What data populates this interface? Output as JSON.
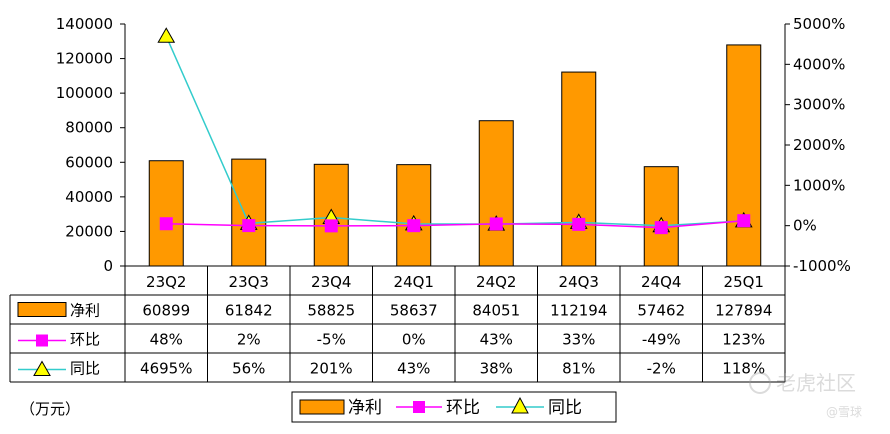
{
  "chart_data": {
    "type": "bar",
    "categories": [
      "23Q2",
      "23Q3",
      "23Q4",
      "24Q1",
      "24Q2",
      "24Q3",
      "24Q4",
      "25Q1"
    ],
    "series": [
      {
        "name": "净利",
        "kind": "bar",
        "axis": "left",
        "values": [
          60899,
          61842,
          58825,
          58637,
          84051,
          112194,
          57462,
          127894
        ],
        "labels": [
          "60899",
          "61842",
          "58825",
          "58637",
          "84051",
          "112194",
          "57462",
          "127894"
        ],
        "color": "#FF9900"
      },
      {
        "name": "环比",
        "kind": "line",
        "axis": "right",
        "values": [
          48,
          2,
          -5,
          0,
          43,
          33,
          -49,
          123
        ],
        "labels": [
          "48%",
          "2%",
          "-5%",
          "0%",
          "43%",
          "33%",
          "-49%",
          "123%"
        ],
        "color": "#FF00FF",
        "marker": "square"
      },
      {
        "name": "同比",
        "kind": "line",
        "axis": "right",
        "values": [
          4695,
          56,
          201,
          43,
          38,
          81,
          -2,
          118
        ],
        "labels": [
          "4695%",
          "56%",
          "201%",
          "43%",
          "38%",
          "81%",
          "-2%",
          "118%"
        ],
        "color": "#33CCCC",
        "marker": "triangle",
        "marker_fill": "#FFFF00"
      }
    ],
    "y_left": {
      "min": 0,
      "max": 140000,
      "ticks": [
        "0",
        "20000",
        "40000",
        "60000",
        "80000",
        "100000",
        "120000",
        "140000"
      ]
    },
    "y_right": {
      "min": -1000,
      "max": 5000,
      "ticks": [
        "-1000%",
        "0%",
        "1000%",
        "2000%",
        "3000%",
        "4000%",
        "5000%"
      ]
    },
    "unit_label": "（万元）",
    "legend": [
      "净利",
      "环比",
      "同比"
    ],
    "legend_position": "bottom-center",
    "grid": false,
    "data_table": true
  },
  "watermark": {
    "text1": "老虎社区",
    "text2": "@雪球"
  }
}
